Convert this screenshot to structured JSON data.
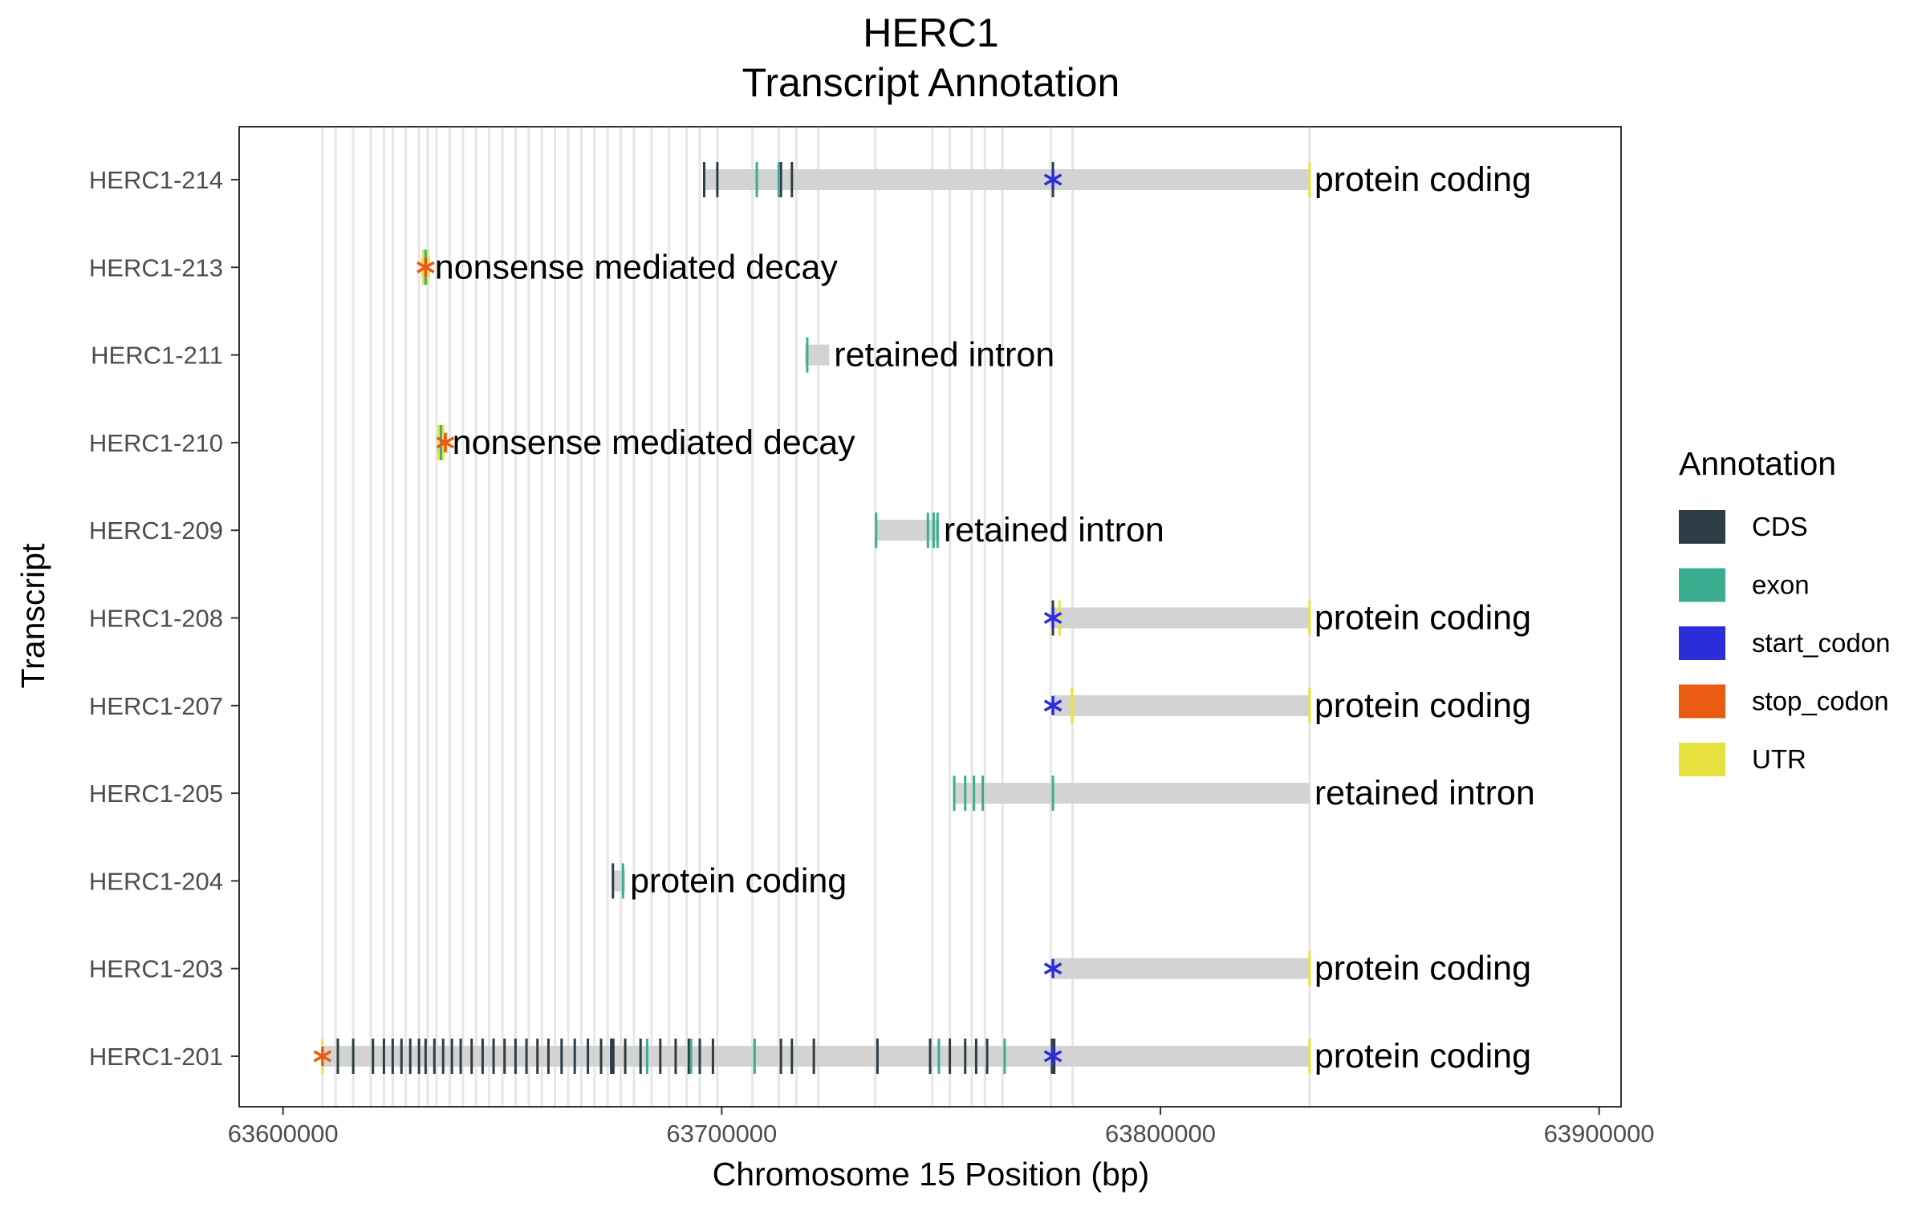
{
  "chart_data": {
    "type": "transcript-annotation",
    "title": "HERC1",
    "subtitle": "Transcript Annotation",
    "xlabel": "Chromosome 15 Position (bp)",
    "ylabel": "Transcript",
    "xlim": [
      63590000,
      63905000
    ],
    "x_ticks": [
      63600000,
      63700000,
      63800000,
      63900000
    ],
    "x_tick_labels": [
      "63600000",
      "63700000",
      "63800000",
      "63900000"
    ],
    "grid": false,
    "legend": {
      "title": "Annotation",
      "placement": "right",
      "items": [
        {
          "label": "CDS",
          "color": "#2e3c45"
        },
        {
          "label": "exon",
          "color": "#3aae8e"
        },
        {
          "label": "start_codon",
          "color": "#2b2ed9"
        },
        {
          "label": "stop_codon",
          "color": "#ea5a10"
        },
        {
          "label": "UTR",
          "color": "#e8e240"
        }
      ]
    },
    "background_exon_lines": [
      63609000,
      63612000,
      63616000,
      63620000,
      63623000,
      63625000,
      63628000,
      63631000,
      63633000,
      63635000,
      63638000,
      63641000,
      63644000,
      63647000,
      63650000,
      63653000,
      63656000,
      63659000,
      63662000,
      63665000,
      63668000,
      63671000,
      63674000,
      63677000,
      63680000,
      63684000,
      63688000,
      63692000,
      63695000,
      63699000,
      63707000,
      63713000,
      63717000,
      63722000,
      63735000,
      63748000,
      63752000,
      63757000,
      63760000,
      63764000,
      63775000,
      63780000,
      63834000
    ],
    "transcripts": [
      {
        "name": "HERC1-214",
        "biotype": "protein coding",
        "start": 63696000,
        "end": 63834000,
        "features": [
          {
            "type": "CDS",
            "pos": [
              63696000,
              63699000,
              63713500,
              63716000,
              63775500
            ]
          },
          {
            "type": "exon",
            "pos": [
              63708000,
              63713000
            ]
          },
          {
            "type": "UTR",
            "pos": [
              63834000
            ]
          }
        ],
        "start_codon": 63775500
      },
      {
        "name": "HERC1-213",
        "biotype": "nonsense mediated decay",
        "start": 63631500,
        "end": 63633500,
        "features": [
          {
            "type": "UTR",
            "pos": [
              63632000,
              63633000
            ]
          },
          {
            "type": "exon",
            "pos": [
              63632500
            ]
          }
        ],
        "stop_codon": 63632500
      },
      {
        "name": "HERC1-211",
        "biotype": "retained intron",
        "start": 63719000,
        "end": 63724500,
        "features": [
          {
            "type": "exon",
            "pos": [
              63719500
            ]
          }
        ]
      },
      {
        "name": "HERC1-210",
        "biotype": "nonsense mediated decay",
        "start": 63635000,
        "end": 63637500,
        "features": [
          {
            "type": "UTR",
            "pos": [
              63635500,
              63636500
            ]
          },
          {
            "type": "exon",
            "pos": [
              63636000
            ]
          }
        ],
        "stop_codon": 63637000
      },
      {
        "name": "HERC1-209",
        "biotype": "retained intron",
        "start": 63735000,
        "end": 63749500,
        "features": [
          {
            "type": "exon",
            "pos": [
              63735200,
              63747000,
              63748300,
              63749200
            ]
          }
        ]
      },
      {
        "name": "HERC1-208",
        "biotype": "protein coding",
        "start": 63775500,
        "end": 63834000,
        "features": [
          {
            "type": "CDS",
            "pos": [
              63775500
            ]
          },
          {
            "type": "UTR",
            "pos": [
              63777000,
              63834000
            ]
          }
        ],
        "start_codon": 63775500
      },
      {
        "name": "HERC1-207",
        "biotype": "protein coding",
        "start": 63775500,
        "end": 63834000,
        "features": [
          {
            "type": "UTR",
            "pos": [
              63779800,
              63834000
            ]
          }
        ],
        "start_codon": 63775500
      },
      {
        "name": "HERC1-205",
        "biotype": "retained intron",
        "start": 63753000,
        "end": 63834000,
        "features": [
          {
            "type": "exon",
            "pos": [
              63753000,
              63755500,
              63757500,
              63759500,
              63775500
            ]
          }
        ]
      },
      {
        "name": "HERC1-204",
        "biotype": "protein coding",
        "start": 63675000,
        "end": 63678000,
        "features": [
          {
            "type": "CDS",
            "pos": [
              63675200
            ]
          },
          {
            "type": "exon",
            "pos": [
              63677500
            ]
          }
        ]
      },
      {
        "name": "HERC1-203",
        "biotype": "protein coding",
        "start": 63775500,
        "end": 63834000,
        "features": [
          {
            "type": "UTR",
            "pos": [
              63834000
            ]
          }
        ],
        "start_codon": 63775500
      },
      {
        "name": "HERC1-201",
        "biotype": "protein coding",
        "start": 63609000,
        "end": 63834000,
        "features": [
          {
            "type": "UTR",
            "pos": [
              63609000,
              63834000
            ]
          },
          {
            "type": "CDS",
            "pos": [
              63612500,
              63616000,
              63620500,
              63623000,
              63625000,
              63627000,
              63629000,
              63631000,
              63632500,
              63634500,
              63636500,
              63638500,
              63640500,
              63643000,
              63645500,
              63648000,
              63650500,
              63653000,
              63655500,
              63658000,
              63660500,
              63663500,
              63666500,
              63669500,
              63672500,
              63674800,
              63675300,
              63678000,
              63681500,
              63686000,
              63689500,
              63692500,
              63695000,
              63698000,
              63713500,
              63716000,
              63721000,
              63735500,
              63747500,
              63752000,
              63755500,
              63758000,
              63760500,
              63775300,
              63775800
            ]
          },
          {
            "type": "exon",
            "pos": [
              63683000,
              63693000,
              63707500,
              63749500,
              63764500
            ]
          }
        ],
        "start_codon": 63775500,
        "stop_codon": 63609000
      }
    ]
  }
}
